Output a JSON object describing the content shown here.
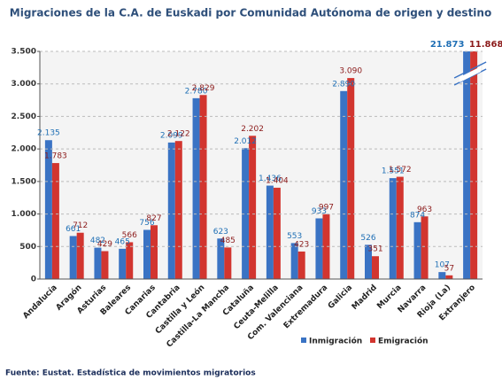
{
  "chart_data": {
    "type": "bar",
    "title": "Migraciones de la C.A. de Euskadi por Comunidad Autónoma de origen y destino",
    "source": "Fuente: Eustat. Estadística de movimientos migratorios",
    "categories": [
      "Andalucía",
      "Aragón",
      "Asturias",
      "Baleares",
      "Canarias",
      "Cantabria",
      "Castilla y León",
      "Castilla-La Mancha",
      "Cataluña",
      "Ceuta-Melilla",
      "Com. Valenciana",
      "Extremadura",
      "Galicia",
      "Madrid",
      "Murcia",
      "Navarra",
      "Rioja (La)",
      "Extranjero"
    ],
    "series": [
      {
        "name": "Inmigración",
        "color": "#3a73c4",
        "label_color": "#1f6fb5",
        "values": [
          2135,
          661,
          482,
          465,
          756,
          2099,
          2780,
          623,
          2012,
          1436,
          553,
          933,
          2890,
          526,
          1551,
          874,
          107,
          21873
        ],
        "value_labels": [
          "2.135",
          "661",
          "482",
          "465",
          "756",
          "2.099",
          "2.780",
          "623",
          "2.012",
          "1.436",
          "553",
          "933",
          "2.890",
          "526",
          "1.551",
          "874",
          "107",
          "21.873"
        ]
      },
      {
        "name": "Emigración",
        "color": "#d2352f",
        "label_color": "#8b1a1a",
        "values": [
          1783,
          712,
          429,
          566,
          827,
          2122,
          2829,
          485,
          2202,
          1404,
          423,
          997,
          3090,
          351,
          1572,
          963,
          57,
          11868
        ],
        "value_labels": [
          "1.783",
          "712",
          "429",
          "566",
          "827",
          "2.122",
          "2.829",
          "485",
          "2.202",
          "1.404",
          "423",
          "997",
          "3.090",
          "351",
          "1.572",
          "963",
          "57",
          "11.868"
        ]
      }
    ],
    "ylim": [
      0,
      3500
    ],
    "yticks": [
      0,
      500,
      {
        "value": 1000,
        "label": "1.000"
      },
      {
        "value": 1500,
        "label": "1.500"
      },
      {
        "value": 2000,
        "label": "2.000"
      },
      {
        "value": 2500,
        "label": "2.500"
      },
      {
        "value": 3000,
        "label": "3.000"
      },
      {
        "value": 3500,
        "label": "3.500"
      }
    ],
    "grid": true,
    "legend": "bottom"
  }
}
